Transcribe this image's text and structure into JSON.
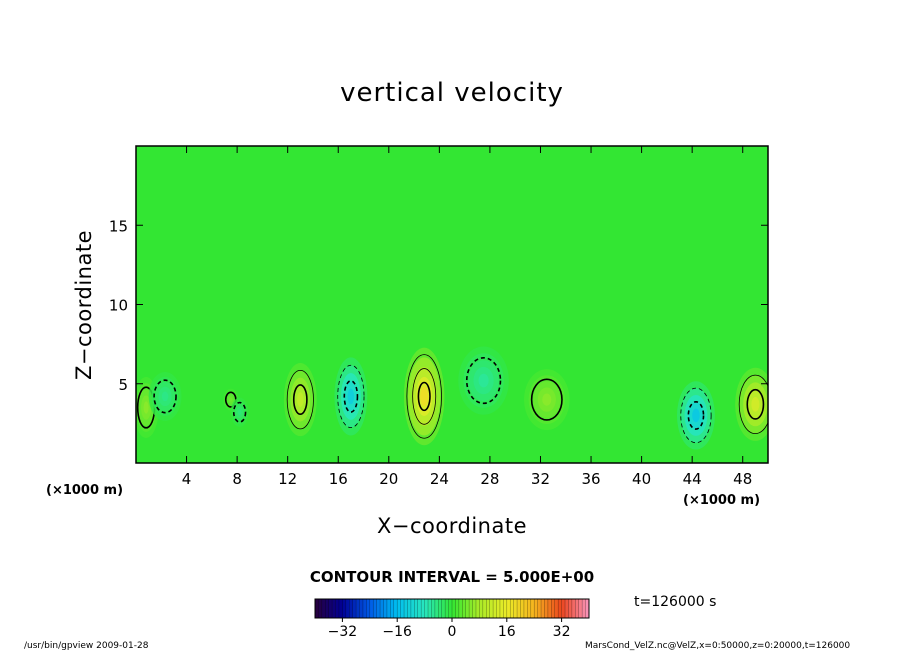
{
  "header": {
    "title": "vertical velocity"
  },
  "axes": {
    "xlabel": "X−coordinate",
    "ylabel": "Z−coordinate",
    "x_unit_left": "(×1000 m)",
    "x_unit_right": "(×1000 m)"
  },
  "legend": {
    "contour_interval": "CONTOUR INTERVAL = 5.000E+00",
    "time": "t=126000 s",
    "colorbar_ticks": [
      "−32",
      "−16",
      "0",
      "16",
      "32"
    ],
    "colorbar_values": [
      -32,
      -16,
      0,
      16,
      32
    ],
    "colorbar_range": [
      -40,
      40
    ]
  },
  "footer": {
    "left": "/usr/bin/gpview  2009-01-28",
    "right": "MarsCond_VelZ.nc@VelZ,x=0:50000,z=0:20000,t=126000"
  },
  "colors": {
    "background_field": "#33e633",
    "updraft": "#e6e633",
    "downdraft": "#33e6cc",
    "contour_line": "#000000"
  },
  "chart_data": {
    "type": "heatmap",
    "title": "vertical velocity",
    "xlabel": "X−coordinate",
    "ylabel": "Z−coordinate",
    "x_ticks": [
      "4",
      "8",
      "12",
      "16",
      "20",
      "24",
      "28",
      "32",
      "36",
      "40",
      "44",
      "48"
    ],
    "x_tick_values": [
      4,
      8,
      12,
      16,
      20,
      24,
      28,
      32,
      36,
      40,
      44,
      48
    ],
    "y_ticks": [
      "5",
      "10",
      "15"
    ],
    "y_tick_values": [
      5,
      10,
      15
    ],
    "xlim": [
      0,
      50
    ],
    "ylim": [
      0,
      20
    ],
    "contour_interval": 5,
    "features": [
      {
        "kind": "updraft",
        "x": 22.8,
        "z": 4.2,
        "dx": 1.6,
        "dz": 4.0,
        "peak": 18
      },
      {
        "kind": "updraft",
        "x": 13.0,
        "z": 4.0,
        "dx": 1.3,
        "dz": 3.0,
        "peak": 11
      },
      {
        "kind": "updraft",
        "x": 49.0,
        "z": 3.7,
        "dx": 1.6,
        "dz": 3.0,
        "peak": 13
      },
      {
        "kind": "updraft",
        "x": 32.5,
        "z": 4.0,
        "dx": 1.8,
        "dz": 2.5,
        "peak": 6
      },
      {
        "kind": "updraft",
        "x": 0.8,
        "z": 3.5,
        "dx": 1.0,
        "dz": 2.5,
        "peak": 6
      },
      {
        "kind": "updraft",
        "x": 7.5,
        "z": 4.0,
        "dx": 0.6,
        "dz": 0.9,
        "peak": 4
      },
      {
        "kind": "downdraft",
        "x": 17.0,
        "z": 4.2,
        "dx": 1.3,
        "dz": 3.2,
        "peak": -13
      },
      {
        "kind": "downdraft",
        "x": 44.3,
        "z": 3.0,
        "dx": 1.5,
        "dz": 2.8,
        "peak": -14
      },
      {
        "kind": "downdraft",
        "x": 27.5,
        "z": 5.2,
        "dx": 2.0,
        "dz": 2.8,
        "peak": -6
      },
      {
        "kind": "downdraft",
        "x": 2.3,
        "z": 4.2,
        "dx": 1.3,
        "dz": 2.0,
        "peak": -5
      },
      {
        "kind": "downdraft",
        "x": 8.2,
        "z": 3.2,
        "dx": 0.7,
        "dz": 1.2,
        "peak": -4
      }
    ]
  }
}
